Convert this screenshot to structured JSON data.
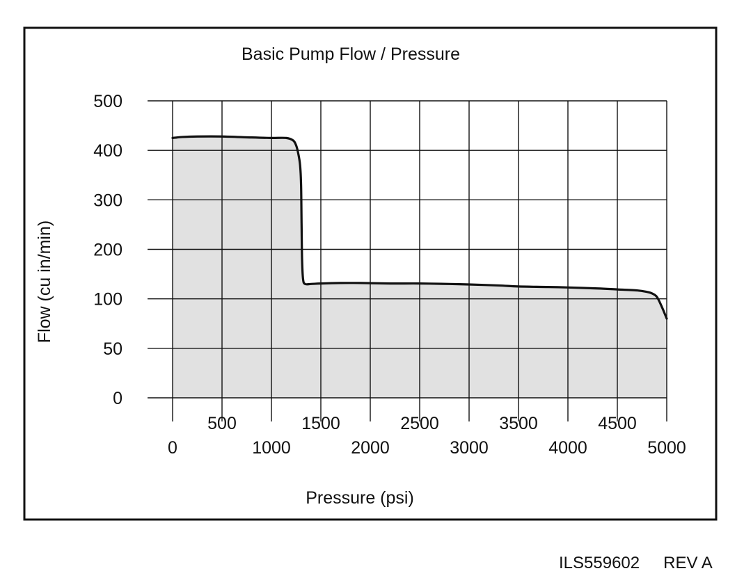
{
  "figure": {
    "id": "ILS559602",
    "revision": "REV A"
  },
  "colors": {
    "fill": "#e1e1e1",
    "line": "#111111",
    "grid": "#111111",
    "frame": "#111111",
    "background": "#ffffff"
  },
  "chart_data": {
    "type": "area",
    "title": "Basic Pump Flow / Pressure",
    "xlabel": "Pressure (psi)",
    "ylabel": "Flow (cu in/min)",
    "xlim": [
      0,
      5000
    ],
    "x_ticks_lower": [
      "0",
      "1000",
      "2000",
      "3000",
      "4000",
      "5000"
    ],
    "x_ticks_upper": [
      "500",
      "1500",
      "2500",
      "3500",
      "4500"
    ],
    "y_ticks": [
      "0",
      "50",
      "100",
      "200",
      "300",
      "400",
      "500"
    ],
    "grid": true,
    "legend": "none",
    "series": [
      {
        "x": [
          0,
          100,
          250,
          500,
          800,
          1000,
          1150,
          1220,
          1250,
          1270,
          1290,
          1300,
          1305,
          1310,
          1320,
          1340,
          1400,
          1500,
          1700,
          1900,
          2200,
          2500,
          2800,
          3000,
          3300,
          3500,
          3800,
          4000,
          4300,
          4500,
          4700,
          4800,
          4850,
          4900,
          4950,
          5000
        ],
        "y": [
          425,
          427,
          428,
          428,
          426,
          425,
          425,
          420,
          410,
          395,
          370,
          330,
          250,
          180,
          140,
          130,
          130,
          131,
          132,
          132,
          131,
          131,
          130,
          129,
          127,
          125,
          124,
          123,
          121,
          119,
          117,
          114,
          111,
          104,
          92,
          80
        ]
      }
    ]
  }
}
